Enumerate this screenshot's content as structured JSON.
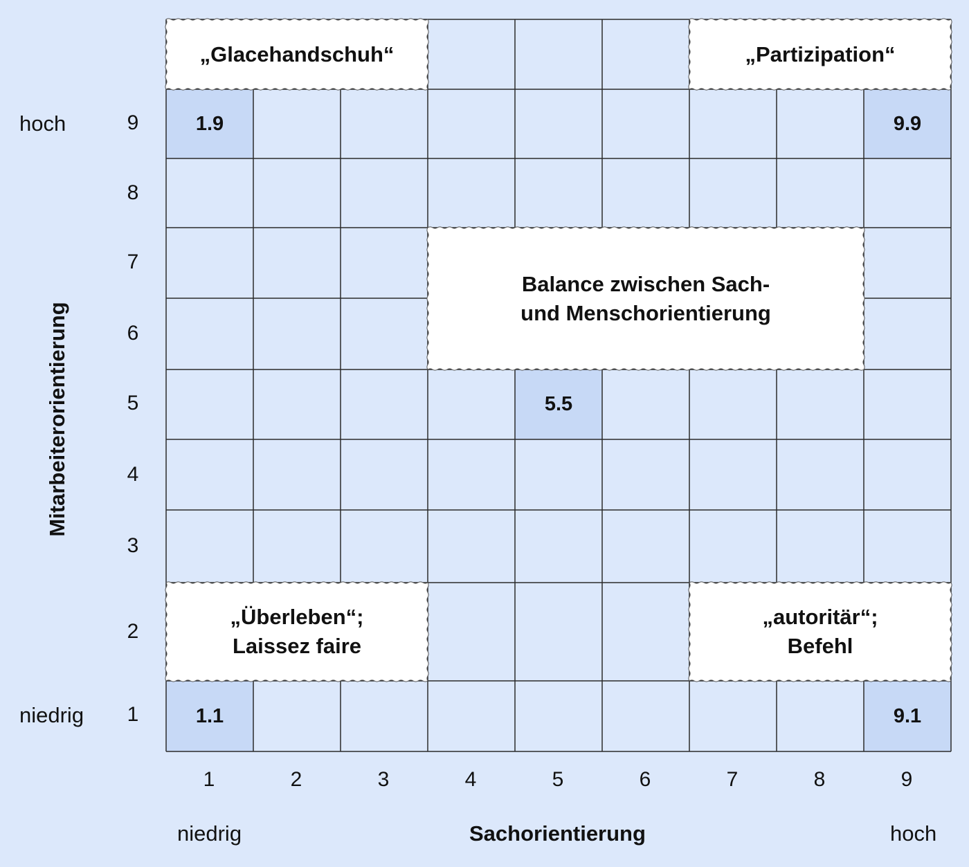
{
  "grid": {
    "x_ticks": [
      "1",
      "2",
      "3",
      "4",
      "5",
      "6",
      "7",
      "8",
      "9"
    ],
    "y_ticks": [
      "9",
      "8",
      "7",
      "6",
      "5",
      "4",
      "3",
      "2",
      "1"
    ]
  },
  "x_axis": {
    "title": "Sachorientierung",
    "low": "niedrig",
    "high": "hoch"
  },
  "y_axis": {
    "title": "Mitarbeiterorientierung",
    "low": "niedrig",
    "high": "hoch"
  },
  "cell_labels": [
    {
      "text": "1.9",
      "x": 1,
      "y": 9
    },
    {
      "text": "9.9",
      "x": 9,
      "y": 9
    },
    {
      "text": "5.5",
      "x": 5,
      "y": 5
    },
    {
      "text": "1.1",
      "x": 1,
      "y": 1
    },
    {
      "text": "9.1",
      "x": 9,
      "y": 1
    }
  ],
  "styles": {
    "glacehandschuh": {
      "line1": "„Glacehandschuh“"
    },
    "partizipation": {
      "line1": "„Partizipation“"
    },
    "balance": {
      "line1": "Balance zwischen Sach-",
      "line2": "und Menschorientierung"
    },
    "ueberleben": {
      "line1": "„Überleben“;",
      "line2": "Laissez faire"
    },
    "autoritaer": {
      "line1": "„autoritär“;",
      "line2": "Befehl"
    }
  },
  "colors": {
    "background": "#dce8fb",
    "highlight_cell": "#c7d9f6",
    "box_fill": "#ffffff",
    "grid_line": "#2b2b2b"
  }
}
